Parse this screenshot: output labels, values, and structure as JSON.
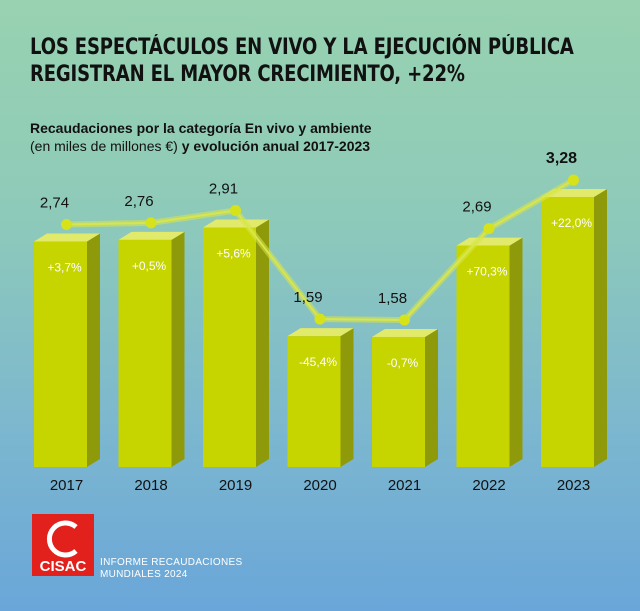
{
  "headline": {
    "line1": "LOS ESPECTÁCULOS EN VIVO Y LA EJECUCIÓN PÚBLICA",
    "line2": "REGISTRAN EL MAYOR CRECIMIENTO, +22%"
  },
  "subtitle": {
    "line1": "Recaudaciones por la categoría En vivo y ambiente",
    "line2_regular": "(en miles de millones €)",
    "line2_bold": " y evolución anual 2017-2023"
  },
  "chart_data": {
    "type": "bar",
    "categories": [
      "2017",
      "2018",
      "2019",
      "2020",
      "2021",
      "2022",
      "2023"
    ],
    "values": [
      2.74,
      2.76,
      2.91,
      1.59,
      1.58,
      2.69,
      3.28
    ],
    "value_labels": [
      "2,74",
      "2,76",
      "2,91",
      "1,59",
      "1,58",
      "2,69",
      "3,28"
    ],
    "change_labels": [
      "+3,7%",
      "+0,5%",
      "+5,6%",
      "-45,4%",
      "-0,7%",
      "+70,3%",
      "+22,0%"
    ],
    "title": "",
    "xlabel": "",
    "ylabel": "",
    "ylim": [
      0,
      3.6
    ],
    "grid": false,
    "overlay_line": true,
    "colors": {
      "bar_front": "#c6d400",
      "bar_side": "#8e9a0a",
      "bar_top": "#e1ea6a",
      "line": "#d9e64a",
      "marker": "#d6e21a",
      "axis_text": "#111111",
      "change_text": "#ffffff"
    }
  },
  "footer": {
    "logo_text": "CISAC",
    "logo_color": "#e2201c",
    "line1": "INFORME RECAUDACIONES",
    "line2": "MUNDIALES 2024"
  }
}
